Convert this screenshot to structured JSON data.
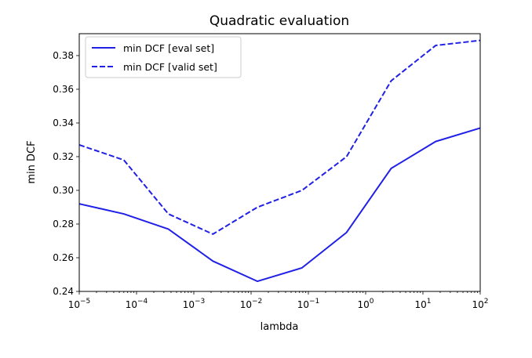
{
  "chart_data": {
    "type": "line",
    "title": "Quadratic evaluation",
    "xlabel": "lambda",
    "ylabel": "min DCF",
    "xscale": "log",
    "xlim": [
      1e-05,
      100
    ],
    "ylim": [
      0.24,
      0.393
    ],
    "xticks": [
      {
        "value": 1e-05,
        "base": "10",
        "exp": "−5"
      },
      {
        "value": 0.0001,
        "base": "10",
        "exp": "−4"
      },
      {
        "value": 0.001,
        "base": "10",
        "exp": "−3"
      },
      {
        "value": 0.01,
        "base": "10",
        "exp": "−2"
      },
      {
        "value": 0.1,
        "base": "10",
        "exp": "−1"
      },
      {
        "value": 1,
        "base": "10",
        "exp": "0"
      },
      {
        "value": 10,
        "base": "10",
        "exp": "1"
      },
      {
        "value": 100,
        "base": "10",
        "exp": "2"
      }
    ],
    "yticks": [
      "0.24",
      "0.26",
      "0.28",
      "0.30",
      "0.32",
      "0.34",
      "0.36",
      "0.38"
    ],
    "grid": false,
    "legend_position": "upper-left",
    "x": [
      1e-05,
      5.995e-05,
      0.0003594,
      0.002154,
      0.01292,
      0.07743,
      0.4642,
      2.783,
      16.68,
      100
    ],
    "series": [
      {
        "name": "min DCF [eval set]",
        "style": "solid",
        "color": "#2020e6",
        "values": [
          0.292,
          0.286,
          0.277,
          0.258,
          0.246,
          0.254,
          0.275,
          0.313,
          0.329,
          0.337
        ]
      },
      {
        "name": "min DCF [valid set]",
        "style": "dashed",
        "color": "#2020e6",
        "values": [
          0.327,
          0.318,
          0.286,
          0.274,
          0.29,
          0.3,
          0.32,
          0.365,
          0.386,
          0.389
        ]
      }
    ]
  }
}
